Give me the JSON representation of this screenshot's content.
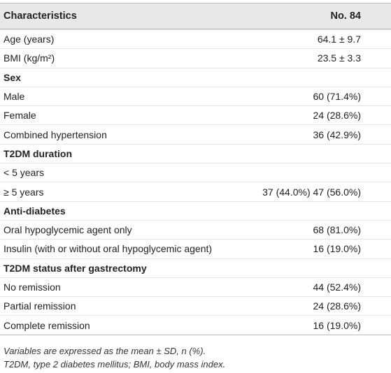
{
  "table": {
    "header": [
      "Characteristics",
      "No. 84"
    ],
    "rows": [
      {
        "label": "Age (years)",
        "value": "64.1 ± 9.7"
      },
      {
        "label": "BMI (kg/m²)",
        "value": "23.5 ± 3.3"
      },
      {
        "label": "Sex",
        "section": true
      },
      {
        "label": "Male",
        "value": "60 (71.4%)"
      },
      {
        "label": "Female",
        "value": "24 (28.6%)"
      },
      {
        "label": "Combined hypertension",
        "value": "36 (42.9%)"
      },
      {
        "label": "T2DM duration",
        "section": true
      },
      {
        "label": "< 5 years"
      },
      {
        "label": "≥ 5 years",
        "value": "37 (44.0%) 47 (56.0%)"
      },
      {
        "label": "Anti-diabetes",
        "section": true
      },
      {
        "label": "Oral hypoglycemic agent only",
        "value": "68 (81.0%)"
      },
      {
        "label": "Insulin (with or without oral hypoglycemic agent)",
        "value": "16 (19.0%)"
      },
      {
        "label": "T2DM status after gastrectomy",
        "section": true
      },
      {
        "label": "No remission",
        "value": "44 (52.4%)"
      },
      {
        "label": "Partial remission",
        "value": "24 (28.6%)"
      },
      {
        "label": "Complete remission",
        "value": "16 (19.0%)"
      }
    ]
  },
  "footnotes": [
    "Variables are expressed as the mean ± SD, n (%).",
    "T2DM, type 2 diabetes mellitus; BMI, body mass index."
  ]
}
